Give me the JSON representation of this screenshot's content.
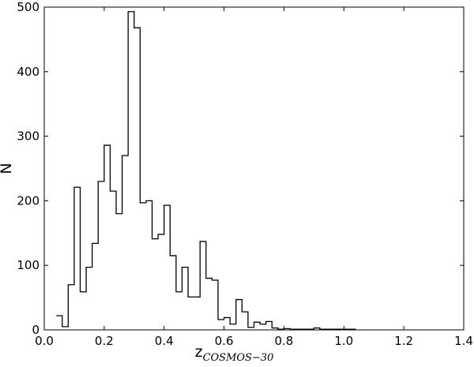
{
  "chart_data": {
    "type": "histogram",
    "title": "",
    "xlabel": {
      "main": "z",
      "subscript": "COSMOS−30"
    },
    "ylabel": "N",
    "xlim": [
      0.0,
      1.4
    ],
    "ylim": [
      0,
      500
    ],
    "xticks": [
      "0.0",
      "0.2",
      "0.4",
      "0.6",
      "0.8",
      "1.0",
      "1.2",
      "1.4"
    ],
    "yticks": [
      "0",
      "100",
      "200",
      "300",
      "400",
      "500"
    ],
    "grid": false,
    "legend": "none",
    "line_color": "#000000",
    "bin_width": 0.02,
    "bin_edges_start": 0.04,
    "values": [
      22,
      5,
      70,
      221,
      59,
      97,
      134,
      230,
      286,
      215,
      180,
      270,
      493,
      468,
      197,
      200,
      141,
      148,
      193,
      115,
      59,
      97,
      51,
      51,
      137,
      80,
      77,
      16,
      19,
      9,
      47,
      28,
      4,
      12,
      9,
      13,
      3,
      1,
      2,
      1,
      1,
      1,
      1,
      3,
      1,
      1,
      1,
      1,
      1,
      1
    ]
  }
}
